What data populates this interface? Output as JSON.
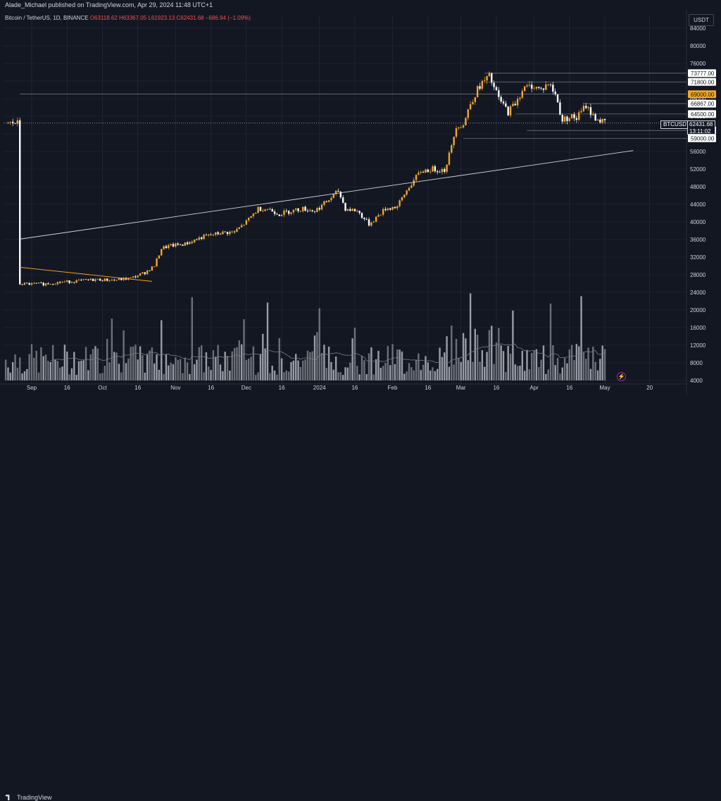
{
  "header": {
    "published": "Alade_Michael published on TradingView.com, Apr 29, 2024 11:48 UTC+1"
  },
  "symbol": {
    "name": "Bitcoin / TetherUS, 1D, BINANCE",
    "open": "O63118.62",
    "high": "H63367.05",
    "low": "L61923.13",
    "close": "C62431.68",
    "change": "−686.94 (−1.09%)",
    "ticker": "BTCUSDT"
  },
  "currency": "USDT",
  "last_price": {
    "value": "62431.68",
    "countdown": "13:11:02"
  },
  "footer": {
    "brand": "TradingView"
  },
  "colors": {
    "background": "#131722",
    "up": "#f5a623",
    "down": "#ffffff",
    "grid": "#2a2e39",
    "text": "#d1d4dc"
  },
  "chart_data": {
    "type": "candlestick",
    "title": "Bitcoin / TetherUS, 1D, BINANCE",
    "ylim": [
      4000,
      86000
    ],
    "price_ylim": [
      24000,
      86000
    ],
    "y_ticks": [
      4000,
      8000,
      12000,
      16000,
      20000,
      24000,
      28000,
      32000,
      36000,
      40000,
      44000,
      48000,
      52000,
      56000,
      60000,
      64000,
      68000,
      72000,
      76000,
      80000,
      84000
    ],
    "x_ticks": [
      "Sep",
      "16",
      "Oct",
      "16",
      "Nov",
      "16",
      "Dec",
      "16",
      "2024",
      "16",
      "Feb",
      "16",
      "Mar",
      "16",
      "Apr",
      "16",
      "May",
      "20"
    ],
    "x_tick_days": [
      0,
      15,
      30,
      45,
      61,
      76,
      91,
      106,
      122,
      137,
      153,
      168,
      182,
      197,
      213,
      228,
      243,
      262
    ],
    "start_date": "2023-09-01",
    "price_anchors": [
      [
        -5,
        25900
      ],
      [
        5,
        25900
      ],
      [
        12,
        26300
      ],
      [
        20,
        26600
      ],
      [
        27,
        26900
      ],
      [
        35,
        26800
      ],
      [
        42,
        27200
      ],
      [
        48,
        28500
      ],
      [
        52,
        30000
      ],
      [
        55,
        34000
      ],
      [
        58,
        34500
      ],
      [
        65,
        35000
      ],
      [
        72,
        36500
      ],
      [
        80,
        37500
      ],
      [
        86,
        37700
      ],
      [
        91,
        40000
      ],
      [
        96,
        43000
      ],
      [
        100,
        43000
      ],
      [
        105,
        41800
      ],
      [
        110,
        42500
      ],
      [
        115,
        43000
      ],
      [
        120,
        42500
      ],
      [
        126,
        45000
      ],
      [
        130,
        47000
      ],
      [
        133,
        43000
      ],
      [
        138,
        42500
      ],
      [
        143,
        39500
      ],
      [
        146,
        41000
      ],
      [
        150,
        43000
      ],
      [
        155,
        43500
      ],
      [
        160,
        48000
      ],
      [
        165,
        51500
      ],
      [
        170,
        52000
      ],
      [
        175,
        51800
      ],
      [
        178,
        57000
      ],
      [
        180,
        62000
      ],
      [
        183,
        62000
      ],
      [
        186,
        67000
      ],
      [
        190,
        71000
      ],
      [
        194,
        73000
      ],
      [
        198,
        68000
      ],
      [
        202,
        65000
      ],
      [
        205,
        67000
      ],
      [
        208,
        70000
      ],
      [
        212,
        71000
      ],
      [
        216,
        70000
      ],
      [
        219,
        71500
      ],
      [
        222,
        69000
      ],
      [
        225,
        63000
      ],
      [
        228,
        64000
      ],
      [
        231,
        63500
      ],
      [
        235,
        66500
      ],
      [
        238,
        64000
      ],
      [
        241,
        63000
      ],
      [
        243,
        62431
      ]
    ],
    "volume": {
      "min": 4000,
      "max": 24000,
      "mean": 9500
    },
    "levels": [
      {
        "price": 73777,
        "label": "73777.00",
        "color": "#ffffff",
        "from_day": 192
      },
      {
        "price": 71800,
        "label": "71800.00",
        "color": "#ffffff",
        "from_day": 192
      },
      {
        "price": 69000,
        "label": "69000.00",
        "color": "#f5a623",
        "from_day": -5
      },
      {
        "price": 66867,
        "label": "66867.00",
        "color": "#ffffff",
        "from_day": 234
      },
      {
        "price": 64500,
        "label": "64500.00",
        "color": "#ffffff",
        "from_day": 205
      },
      {
        "price": 60775,
        "label": "60775.00",
        "color": "#ffffff",
        "from_day": 210
      },
      {
        "price": 59000,
        "label": "59000.00",
        "color": "#ffffff",
        "from_day": 183
      }
    ],
    "trendlines": [
      {
        "from": [
          -5,
          36100
        ],
        "to": [
          255,
          56200
        ],
        "color": "#d1d4dc"
      },
      {
        "from": [
          -5,
          29700
        ],
        "to": [
          51,
          26500
        ],
        "color": "#f5a623"
      }
    ]
  }
}
